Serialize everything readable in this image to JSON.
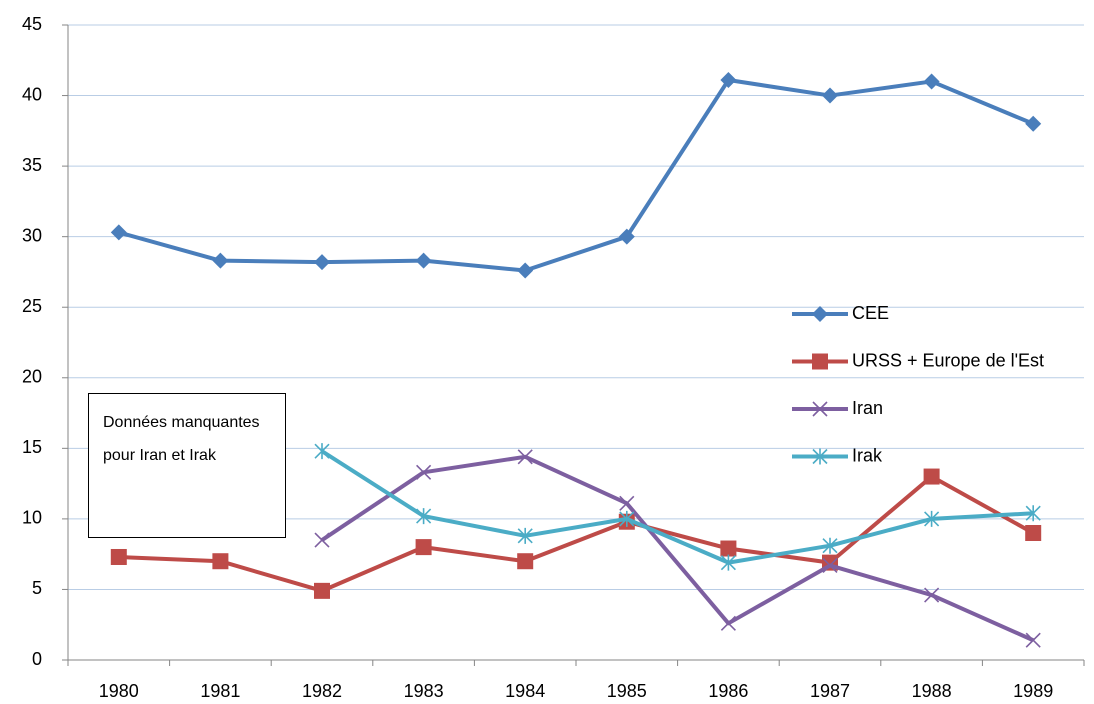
{
  "chart_data": {
    "type": "line",
    "categories": [
      "1980",
      "1981",
      "1982",
      "1983",
      "1984",
      "1985",
      "1986",
      "1987",
      "1988",
      "1989"
    ],
    "series": [
      {
        "name": "CEE",
        "color": "#4a7ebb",
        "marker": "diamond",
        "values": [
          30.3,
          28.3,
          28.2,
          28.3,
          27.6,
          30.0,
          41.1,
          40.0,
          41.0,
          38.0
        ]
      },
      {
        "name": "URSS + Europe de l'Est",
        "color": "#be4b48",
        "marker": "square",
        "values": [
          7.3,
          7.0,
          4.9,
          8.0,
          7.0,
          9.8,
          7.9,
          6.9,
          13.0,
          9.0
        ]
      },
      {
        "name": "Iran",
        "color": "#7d5fa0",
        "marker": "x",
        "values": [
          null,
          null,
          8.5,
          13.3,
          14.4,
          11.1,
          2.6,
          6.7,
          4.6,
          1.4
        ]
      },
      {
        "name": "Irak",
        "color": "#4bacc6",
        "marker": "asterisk",
        "values": [
          null,
          null,
          14.8,
          10.2,
          8.8,
          10.0,
          6.9,
          8.1,
          10.0,
          10.4
        ]
      }
    ],
    "ylim": [
      0,
      45
    ],
    "yticks": [
      0,
      5,
      10,
      15,
      20,
      25,
      30,
      35,
      40,
      45
    ],
    "grid": true,
    "legend": "right",
    "annotation": "Données manquantes pour Iran et Irak"
  }
}
